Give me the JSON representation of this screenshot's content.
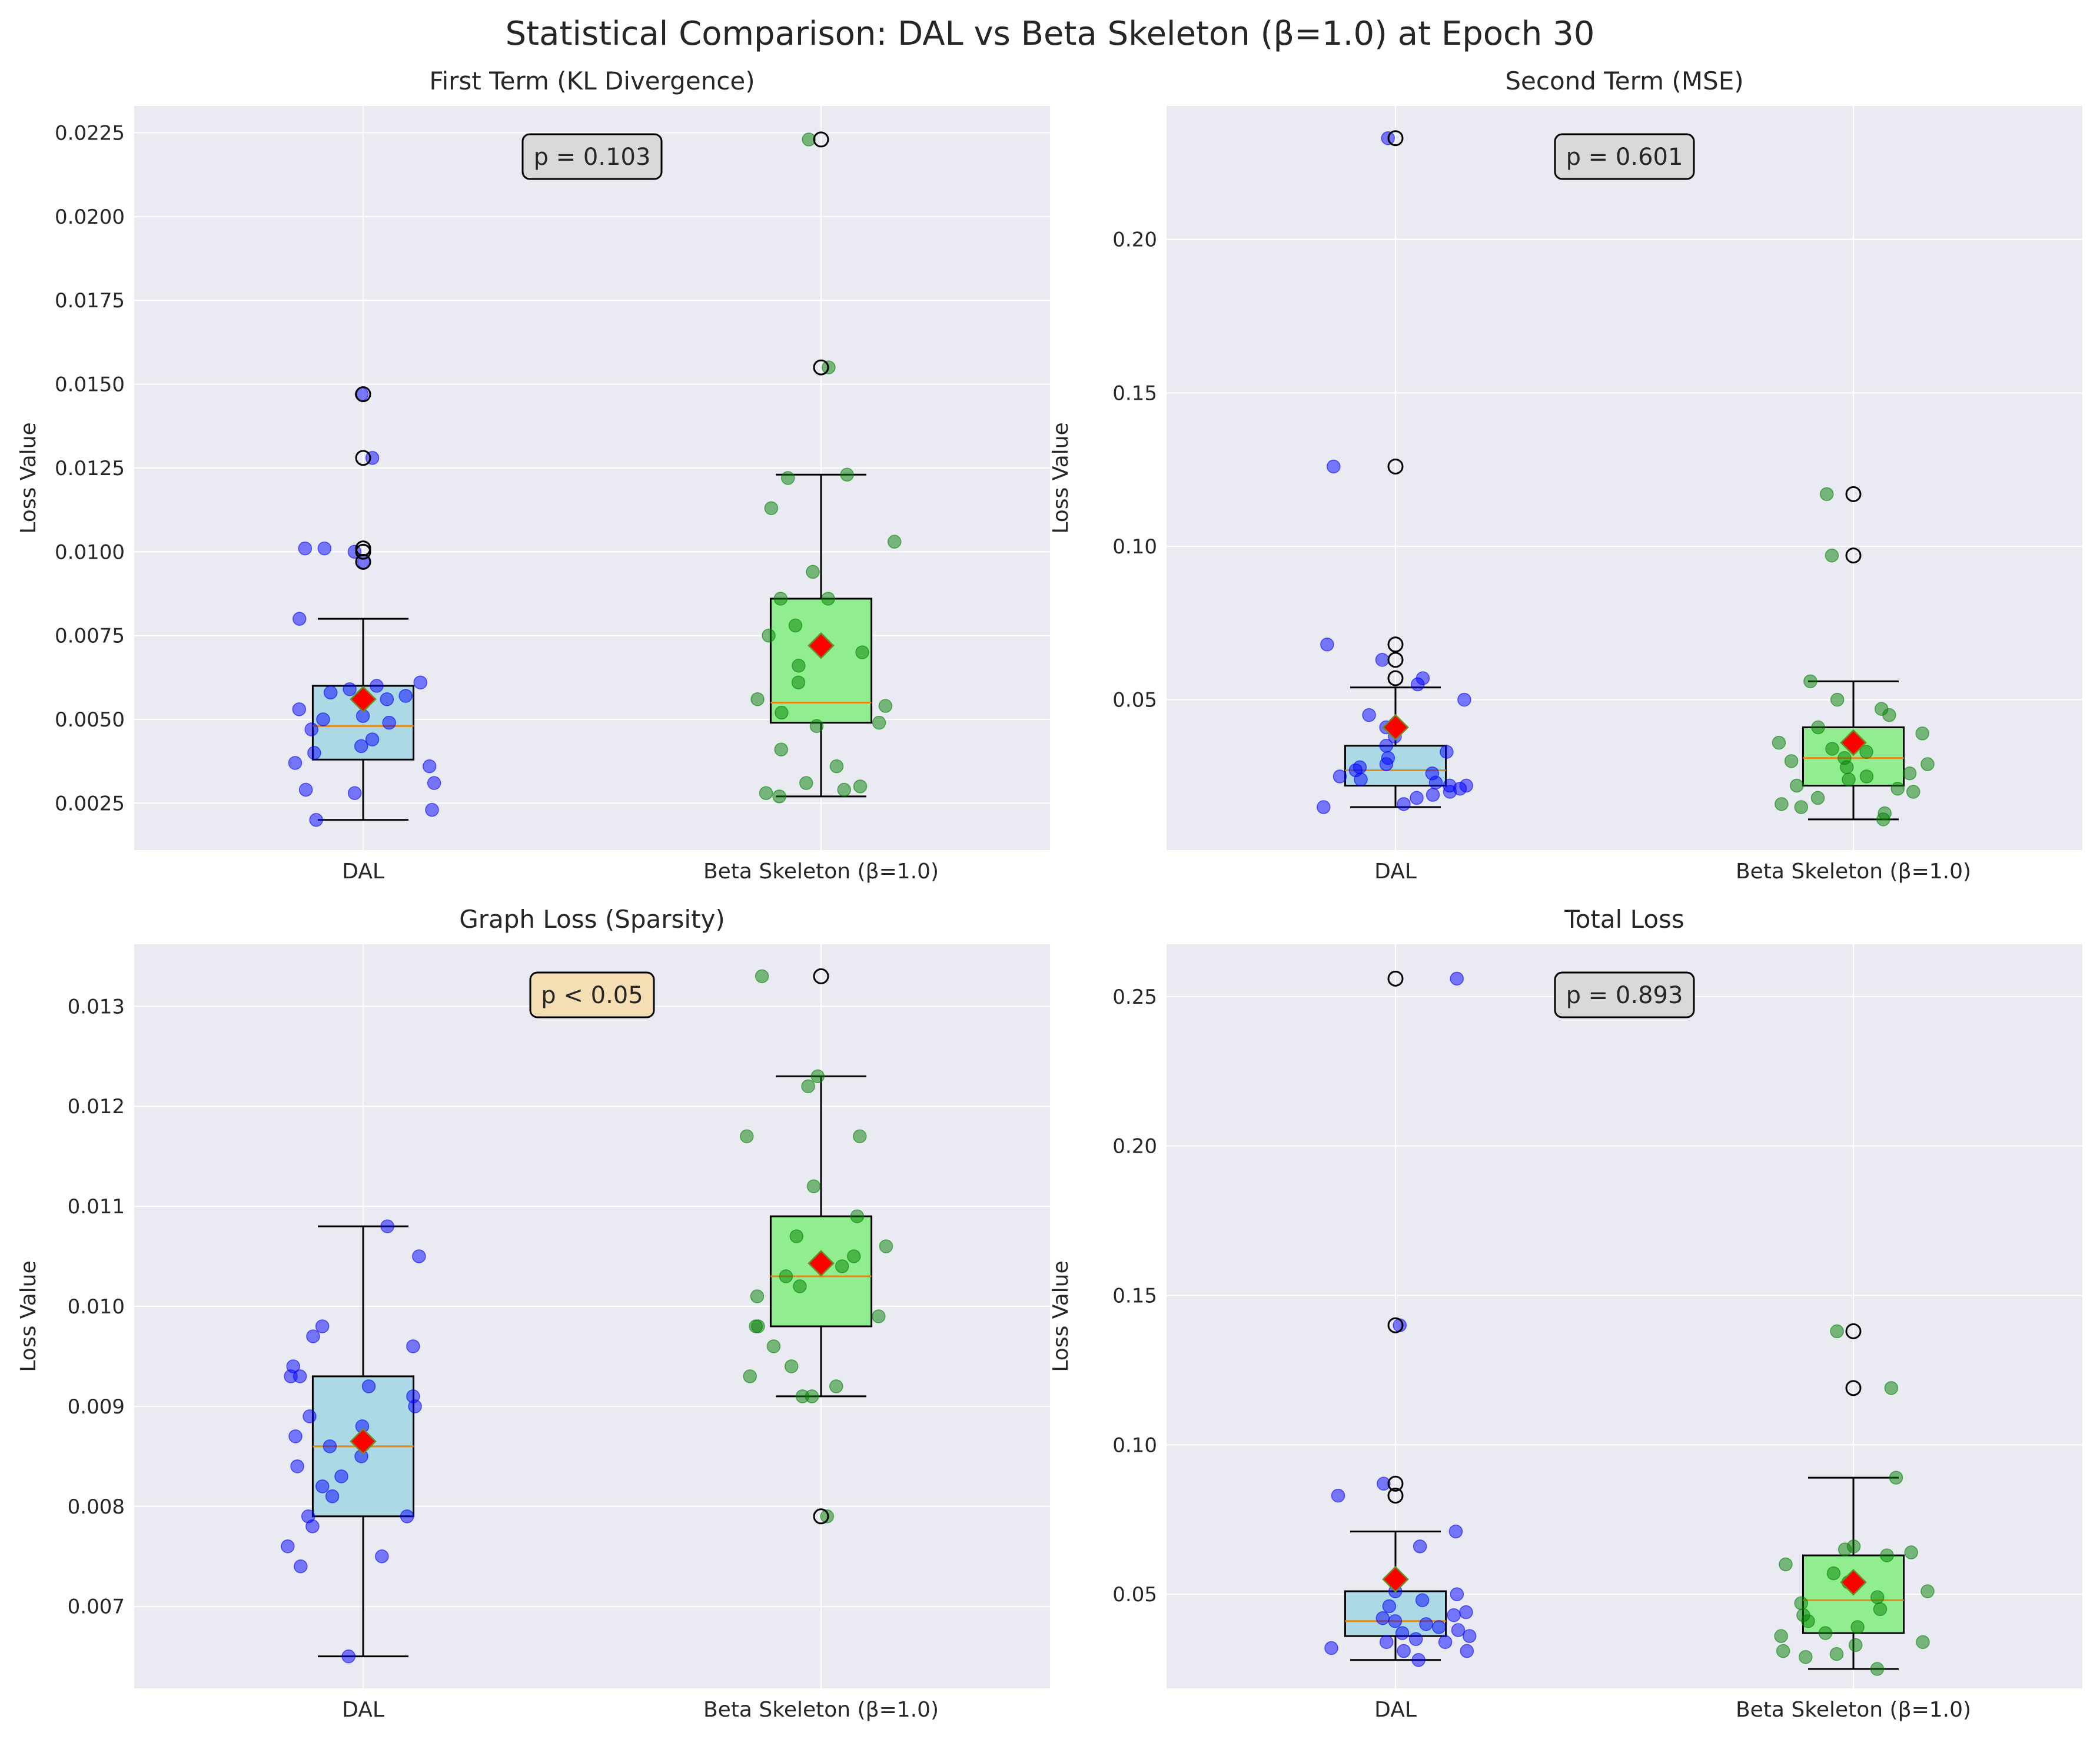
{
  "figure": {
    "title": "Statistical Comparison: DAL vs Beta Skeleton (β=1.0) at Epoch 30"
  },
  "colors": {
    "plot_background": "#eaeaf2",
    "grid": "#ffffff",
    "dal_box": "#add8e6",
    "beta_box": "#90ee90",
    "dal_points": "#0000ff",
    "beta_points": "#008000",
    "median_line": "#e08a18",
    "mean_marker": "#ff0000",
    "mean_marker_edge": "#6b8e23",
    "pvalue_box_default": "#d9d9d9",
    "pvalue_box_significant": "#f5deb3"
  },
  "chart_data": [
    {
      "type": "box",
      "title": "First Term (KL Divergence)",
      "ylabel": "Loss Value",
      "xlabel": "",
      "categories": [
        "DAL",
        "Beta Skeleton (β=1.0)"
      ],
      "ylim": [
        0.0011,
        0.0233
      ],
      "yticks": [
        0.0025,
        0.005,
        0.0075,
        0.01,
        0.0125,
        0.015,
        0.0175,
        0.02,
        0.0225
      ],
      "ytick_labels": [
        "0.0025",
        "0.0050",
        "0.0075",
        "0.0100",
        "0.0125",
        "0.0150",
        "0.0175",
        "0.0200",
        "0.0225"
      ],
      "grid": true,
      "p_value_text": "p = 0.103",
      "significant": false,
      "boxes": [
        {
          "name": "DAL",
          "whisker_low": 0.002,
          "q1": 0.0038,
          "median": 0.0048,
          "q3": 0.006,
          "whisker_high": 0.008,
          "mean": 0.0056,
          "outliers": [
            0.0147,
            0.0128,
            0.0101,
            0.01,
            0.0097
          ],
          "points": [
            0.0147,
            0.0128,
            0.0101,
            0.0101,
            0.01,
            0.0097,
            0.008,
            0.0061,
            0.006,
            0.0059,
            0.0058,
            0.0057,
            0.0056,
            0.0053,
            0.0051,
            0.005,
            0.0049,
            0.0047,
            0.0044,
            0.0042,
            0.004,
            0.0037,
            0.0036,
            0.0031,
            0.0029,
            0.0028,
            0.0023,
            0.002
          ]
        },
        {
          "name": "Beta Skeleton (β=1.0)",
          "whisker_low": 0.0027,
          "q1": 0.0049,
          "median": 0.0055,
          "q3": 0.0086,
          "whisker_high": 0.0123,
          "mean": 0.0072,
          "outliers": [
            0.0223,
            0.0155
          ],
          "points": [
            0.0223,
            0.0155,
            0.0123,
            0.0122,
            0.0113,
            0.0103,
            0.0094,
            0.0086,
            0.0086,
            0.0078,
            0.0075,
            0.007,
            0.0066,
            0.0061,
            0.0056,
            0.0054,
            0.0052,
            0.0049,
            0.0048,
            0.0041,
            0.0036,
            0.0031,
            0.003,
            0.0029,
            0.0028,
            0.0027
          ]
        }
      ]
    },
    {
      "type": "box",
      "title": "Second Term (MSE)",
      "ylabel": "Loss Value",
      "xlabel": "",
      "categories": [
        "DAL",
        "Beta Skeleton (β=1.0)"
      ],
      "ylim": [
        0.001,
        0.2435
      ],
      "yticks": [
        0.05,
        0.1,
        0.15,
        0.2
      ],
      "ytick_labels": [
        "0.05",
        "0.10",
        "0.15",
        "0.20"
      ],
      "grid": true,
      "p_value_text": "p = 0.601",
      "significant": false,
      "boxes": [
        {
          "name": "DAL",
          "whisker_low": 0.015,
          "q1": 0.022,
          "median": 0.027,
          "q3": 0.035,
          "whisker_high": 0.054,
          "mean": 0.041,
          "outliers": [
            0.233,
            0.126,
            0.068,
            0.063,
            0.057
          ],
          "points": [
            0.233,
            0.126,
            0.068,
            0.063,
            0.057,
            0.055,
            0.05,
            0.045,
            0.041,
            0.038,
            0.035,
            0.033,
            0.031,
            0.029,
            0.028,
            0.027,
            0.026,
            0.025,
            0.024,
            0.023,
            0.022,
            0.022,
            0.021,
            0.02,
            0.019,
            0.018,
            0.016,
            0.015
          ]
        },
        {
          "name": "Beta Skeleton (β=1.0)",
          "whisker_low": 0.011,
          "q1": 0.022,
          "median": 0.031,
          "q3": 0.041,
          "whisker_high": 0.056,
          "mean": 0.036,
          "outliers": [
            0.117,
            0.097
          ],
          "points": [
            0.117,
            0.097,
            0.056,
            0.05,
            0.047,
            0.045,
            0.041,
            0.039,
            0.036,
            0.034,
            0.033,
            0.031,
            0.03,
            0.029,
            0.028,
            0.026,
            0.025,
            0.024,
            0.022,
            0.021,
            0.02,
            0.018,
            0.016,
            0.015,
            0.013,
            0.011
          ]
        }
      ]
    },
    {
      "type": "box",
      "title": "Graph Loss (Sparsity)",
      "ylabel": "Loss Value",
      "xlabel": "",
      "categories": [
        "DAL",
        "Beta Skeleton (β=1.0)"
      ],
      "ylim": [
        0.00618,
        0.01362
      ],
      "yticks": [
        0.007,
        0.008,
        0.009,
        0.01,
        0.011,
        0.012,
        0.013
      ],
      "ytick_labels": [
        "0.007",
        "0.008",
        "0.009",
        "0.010",
        "0.011",
        "0.012",
        "0.013"
      ],
      "grid": true,
      "p_value_text": "p < 0.05",
      "significant": true,
      "boxes": [
        {
          "name": "DAL",
          "whisker_low": 0.0065,
          "q1": 0.0079,
          "median": 0.0086,
          "q3": 0.0093,
          "whisker_high": 0.0108,
          "mean": 0.00865,
          "outliers": [],
          "points": [
            0.0108,
            0.0105,
            0.0098,
            0.0096,
            0.0097,
            0.0094,
            0.0093,
            0.0093,
            0.0092,
            0.0091,
            0.009,
            0.0089,
            0.0088,
            0.0087,
            0.0086,
            0.0085,
            0.0084,
            0.0083,
            0.0082,
            0.0081,
            0.0079,
            0.0079,
            0.0078,
            0.0076,
            0.0075,
            0.0074,
            0.0065
          ]
        },
        {
          "name": "Beta Skeleton (β=1.0)",
          "whisker_low": 0.0091,
          "q1": 0.0098,
          "median": 0.0103,
          "q3": 0.0109,
          "whisker_high": 0.0123,
          "mean": 0.01043,
          "outliers": [
            0.0133,
            0.0079
          ],
          "points": [
            0.0133,
            0.0123,
            0.0122,
            0.0117,
            0.0117,
            0.0112,
            0.0109,
            0.0107,
            0.0106,
            0.0105,
            0.0104,
            0.0103,
            0.0102,
            0.0101,
            0.0099,
            0.0098,
            0.0098,
            0.0096,
            0.0094,
            0.0093,
            0.0092,
            0.0091,
            0.0091,
            0.0079
          ]
        }
      ]
    },
    {
      "type": "box",
      "title": "Total Loss",
      "ylabel": "Loss Value",
      "xlabel": "",
      "categories": [
        "DAL",
        "Beta Skeleton (β=1.0)"
      ],
      "ylim": [
        0.0185,
        0.2675
      ],
      "yticks": [
        0.05,
        0.1,
        0.15,
        0.2,
        0.25
      ],
      "ytick_labels": [
        "0.05",
        "0.10",
        "0.15",
        "0.20",
        "0.25"
      ],
      "grid": true,
      "p_value_text": "p = 0.893",
      "significant": false,
      "boxes": [
        {
          "name": "DAL",
          "whisker_low": 0.028,
          "q1": 0.036,
          "median": 0.041,
          "q3": 0.051,
          "whisker_high": 0.071,
          "mean": 0.055,
          "outliers": [
            0.256,
            0.14,
            0.087,
            0.083
          ],
          "points": [
            0.256,
            0.14,
            0.087,
            0.083,
            0.071,
            0.066,
            0.051,
            0.05,
            0.048,
            0.046,
            0.044,
            0.043,
            0.042,
            0.041,
            0.04,
            0.039,
            0.038,
            0.037,
            0.036,
            0.035,
            0.034,
            0.034,
            0.032,
            0.031,
            0.031,
            0.028
          ]
        },
        {
          "name": "Beta Skeleton (β=1.0)",
          "whisker_low": 0.025,
          "q1": 0.037,
          "median": 0.048,
          "q3": 0.063,
          "whisker_high": 0.089,
          "mean": 0.054,
          "outliers": [
            0.138,
            0.119
          ],
          "points": [
            0.138,
            0.119,
            0.089,
            0.066,
            0.065,
            0.064,
            0.063,
            0.06,
            0.057,
            0.054,
            0.051,
            0.049,
            0.047,
            0.045,
            0.043,
            0.041,
            0.039,
            0.037,
            0.036,
            0.034,
            0.033,
            0.031,
            0.03,
            0.029,
            0.025
          ]
        }
      ]
    }
  ]
}
